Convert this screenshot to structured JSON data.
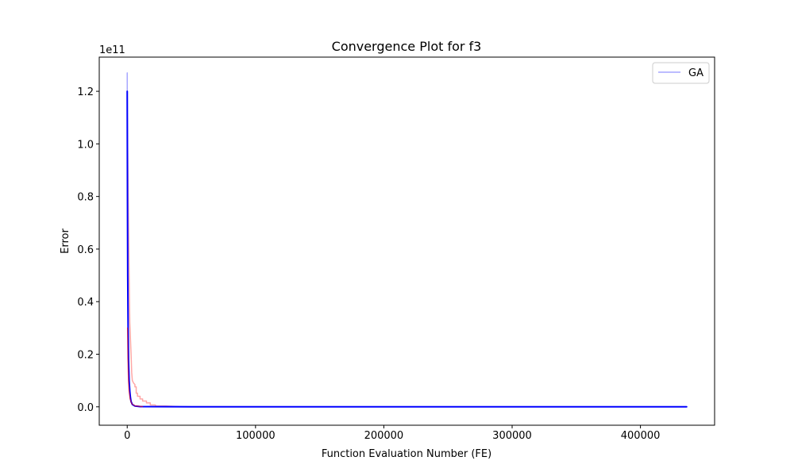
{
  "chart_data": {
    "type": "line",
    "title": "Convergence Plot for f3",
    "xlabel": "Function Evaluation Number (FE)",
    "ylabel": "Error",
    "y_offset_label": "1e11",
    "xlim": [
      -21800,
      457800
    ],
    "ylim": [
      -7000000000,
      133000000000
    ],
    "x_ticks": [
      0,
      100000,
      200000,
      300000,
      400000
    ],
    "x_tick_labels": [
      "0",
      "100000",
      "200000",
      "300000",
      "400000"
    ],
    "y_ticks": [
      0,
      20000000000,
      40000000000,
      60000000000,
      80000000000,
      100000000000,
      120000000000
    ],
    "y_tick_labels": [
      "0.0",
      "0.2",
      "0.4",
      "0.6",
      "0.8",
      "1.0",
      "1.2"
    ],
    "grid": false,
    "legend": {
      "position": "top-right",
      "entries": [
        "GA"
      ]
    },
    "series": [
      {
        "name": "GA",
        "color": "#0000ff",
        "opacity": 0.35,
        "width": 1.5,
        "points": [
          [
            0,
            127000000000
          ],
          [
            300,
            60000000000
          ],
          [
            600,
            30000000000
          ],
          [
            1000,
            16000000000
          ],
          [
            1500,
            9000000000
          ],
          [
            2000,
            5000000000
          ],
          [
            3000,
            2000000000
          ],
          [
            4000,
            800000000
          ],
          [
            6000,
            300000000
          ],
          [
            10000,
            100000000
          ],
          [
            50000,
            20000000
          ],
          [
            200000,
            5000000
          ],
          [
            436000,
            1000000
          ]
        ]
      },
      {
        "color": "#ff0000",
        "opacity": 0.35,
        "width": 1.5,
        "points": [
          [
            0,
            113000000000
          ],
          [
            600,
            88000000000
          ],
          [
            1000,
            70000000000
          ],
          [
            1500,
            50000000000
          ],
          [
            2000,
            32000000000
          ],
          [
            3000,
            20000000000
          ],
          [
            3500,
            13000000000
          ],
          [
            4000,
            10000000000
          ],
          [
            5000,
            9000000000
          ],
          [
            6000,
            8500000000
          ],
          [
            6000,
            7600000000
          ],
          [
            7000,
            7600000000
          ],
          [
            7000,
            5200000000
          ],
          [
            8000,
            5200000000
          ],
          [
            8000,
            4000000000
          ],
          [
            10000,
            4000000000
          ],
          [
            10000,
            3000000000
          ],
          [
            12000,
            3000000000
          ],
          [
            12000,
            2200000000
          ],
          [
            15000,
            2200000000
          ],
          [
            15000,
            1500000000
          ],
          [
            18000,
            1500000000
          ],
          [
            18000,
            700000000
          ],
          [
            22000,
            700000000
          ],
          [
            22000,
            300000000
          ],
          [
            30000,
            300000000
          ],
          [
            40000,
            100000000
          ],
          [
            60000,
            50000000
          ],
          [
            135000,
            20000000
          ]
        ]
      },
      {
        "color": "#0000ff",
        "opacity": 1,
        "width": 2,
        "points": [
          [
            0,
            120000000000
          ],
          [
            200,
            80000000000
          ],
          [
            400,
            50000000000
          ],
          [
            700,
            30000000000
          ],
          [
            1000,
            18000000000
          ],
          [
            1500,
            10000000000
          ],
          [
            2000,
            6000000000
          ],
          [
            2500,
            3500000000
          ],
          [
            3000,
            2000000000
          ],
          [
            4000,
            900000000
          ],
          [
            6000,
            300000000
          ],
          [
            10000,
            100000000
          ],
          [
            50000,
            20000000
          ],
          [
            200000,
            5000000
          ],
          [
            436000,
            1000000
          ]
        ]
      },
      {
        "color": "#ff0000",
        "opacity": 0.6,
        "width": 1.2,
        "points": [
          [
            200,
            30000000000
          ],
          [
            500,
            18000000000
          ],
          [
            900,
            10000000000
          ],
          [
            1400,
            6000000000
          ],
          [
            2200,
            3000000000
          ],
          [
            3500,
            1200000000
          ],
          [
            6000,
            400000000
          ],
          [
            12000,
            100000000
          ]
        ]
      }
    ]
  }
}
